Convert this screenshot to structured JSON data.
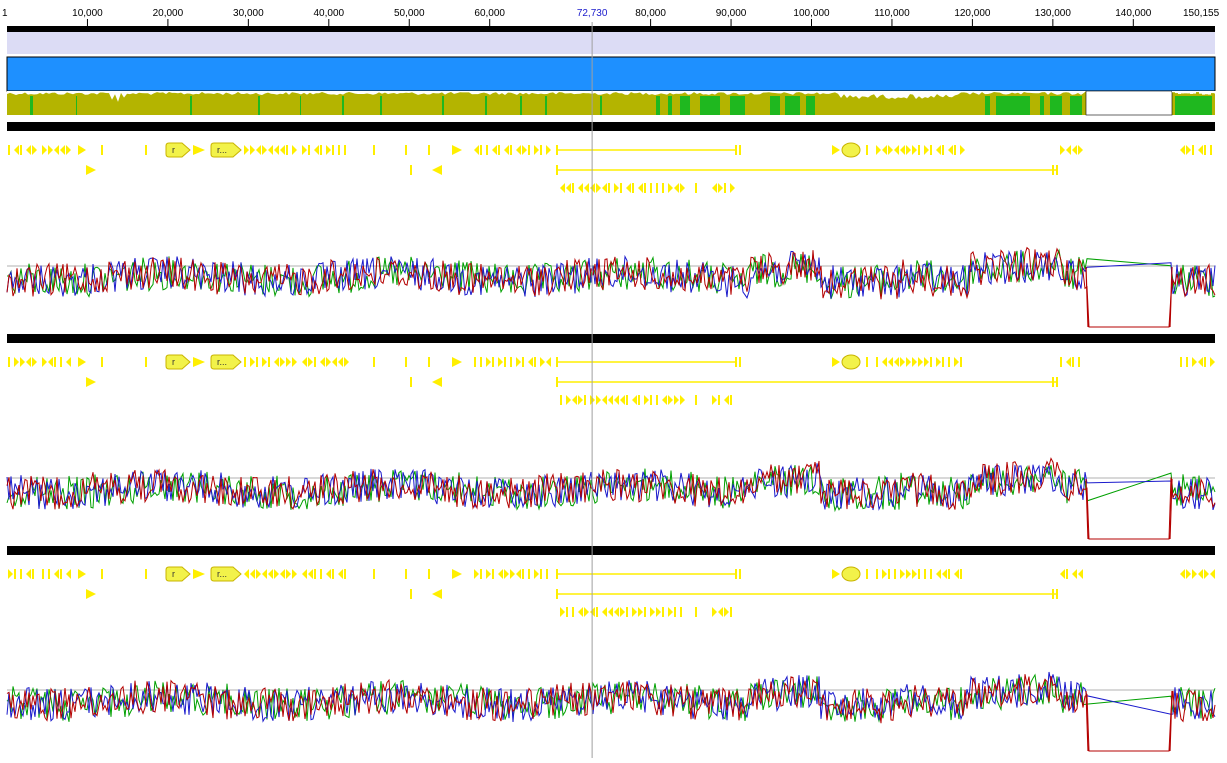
{
  "ruler": {
    "start_label": "1",
    "end_label": "150,155",
    "ticks": [
      {
        "pos": 10000,
        "label": "10,000"
      },
      {
        "pos": 20000,
        "label": "20,000"
      },
      {
        "pos": 30000,
        "label": "30,000"
      },
      {
        "pos": 40000,
        "label": "40,000"
      },
      {
        "pos": 50000,
        "label": "50,000"
      },
      {
        "pos": 60000,
        "label": "60,000"
      },
      {
        "pos": 80000,
        "label": "80,000"
      },
      {
        "pos": 90000,
        "label": "90,000"
      },
      {
        "pos": 100000,
        "label": "100,000"
      },
      {
        "pos": 110000,
        "label": "110,000"
      },
      {
        "pos": 120000,
        "label": "120,000"
      },
      {
        "pos": 130000,
        "label": "130,000"
      },
      {
        "pos": 140000,
        "label": "140,000"
      }
    ],
    "cursor_position": 72730,
    "cursor_label": "72,730",
    "sequence_length": 150155
  },
  "colors": {
    "ruler_bar": "#000000",
    "selection_band": "#dcdcf5",
    "coverage_blue": "#1e90ff",
    "consensus_olive": "#b4b400",
    "identity_green": "#1fb81f",
    "annotation_yellow": "#ffef00",
    "annotation_yellow_fill": "#f2f24a",
    "graph_red": "#b40000",
    "graph_green": "#00a000",
    "graph_blue": "#1a1acc",
    "baseline_gray": "#b0b0b0",
    "cursor_gray": "#a0a0a0"
  },
  "tracks": [
    {
      "id": "sequence-1",
      "annotation_labels": [
        "r",
        "r..."
      ]
    },
    {
      "id": "sequence-2",
      "annotation_labels": [
        "r",
        "r..."
      ]
    },
    {
      "id": "sequence-3",
      "annotation_labels": [
        "r",
        "r..."
      ]
    }
  ]
}
